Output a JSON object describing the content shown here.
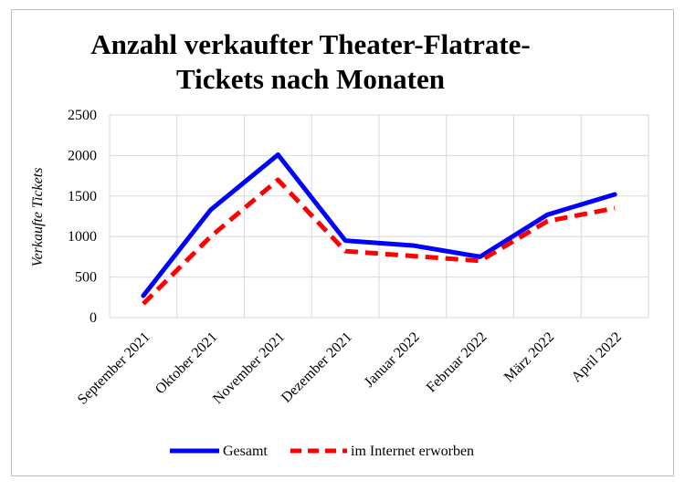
{
  "chart_data": {
    "type": "line",
    "title_line1": "Anzahl verkaufter Theater-Flatrate-",
    "title_line2": "Tickets nach Monaten",
    "ylabel": "Verkaufte Tickets",
    "xlabel": "",
    "categories": [
      "September 2021",
      "Oktober 2021",
      "November 2021",
      "Dezember 2021",
      "Januar 2022",
      "Februar 2022",
      "März 2022",
      "April 2022"
    ],
    "ylim": [
      0,
      2500
    ],
    "yticks": [
      "0",
      "500",
      "1000",
      "1500",
      "2000",
      "2500"
    ],
    "grid": true,
    "legend_position": "bottom",
    "series": [
      {
        "name": "Gesamt",
        "values": [
          270,
          1330,
          2010,
          950,
          890,
          750,
          1270,
          1520
        ],
        "color": "#0000ff",
        "style": "solid"
      },
      {
        "name": "im Internet erworben",
        "values": [
          170,
          1000,
          1700,
          820,
          760,
          700,
          1190,
          1350
        ],
        "color": "#ff0000",
        "style": "dashed"
      }
    ]
  }
}
